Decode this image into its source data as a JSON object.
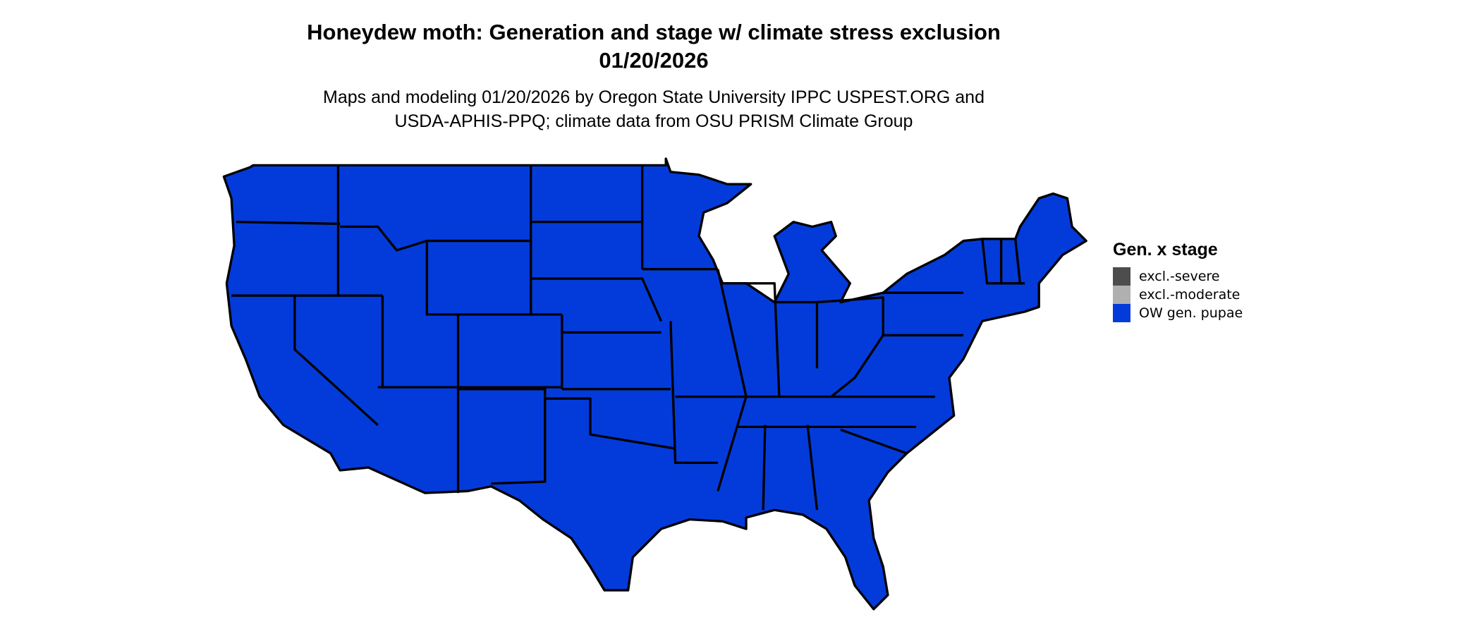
{
  "title": {
    "line1": "Honeydew moth: Generation and stage w/ climate stress exclusion",
    "line2": "01/20/2026"
  },
  "subtitle": {
    "line1": "Maps and modeling 01/20/2026 by Oregon State University IPPC USPEST.ORG and",
    "line2": "USDA-APHIS-PPQ; climate data from OSU PRISM Climate Group"
  },
  "map": {
    "region": "contiguous United States",
    "fill_category": "OW gen. pupae",
    "fill_color": "#033bdb",
    "border_color": "#000000"
  },
  "legend": {
    "title": "Gen. x stage",
    "items": [
      {
        "label": "excl.-severe",
        "color": "#4d4d4d"
      },
      {
        "label": "excl.-moderate",
        "color": "#b0b0b0"
      },
      {
        "label": "OW gen. pupae",
        "color": "#033bdb"
      }
    ]
  }
}
